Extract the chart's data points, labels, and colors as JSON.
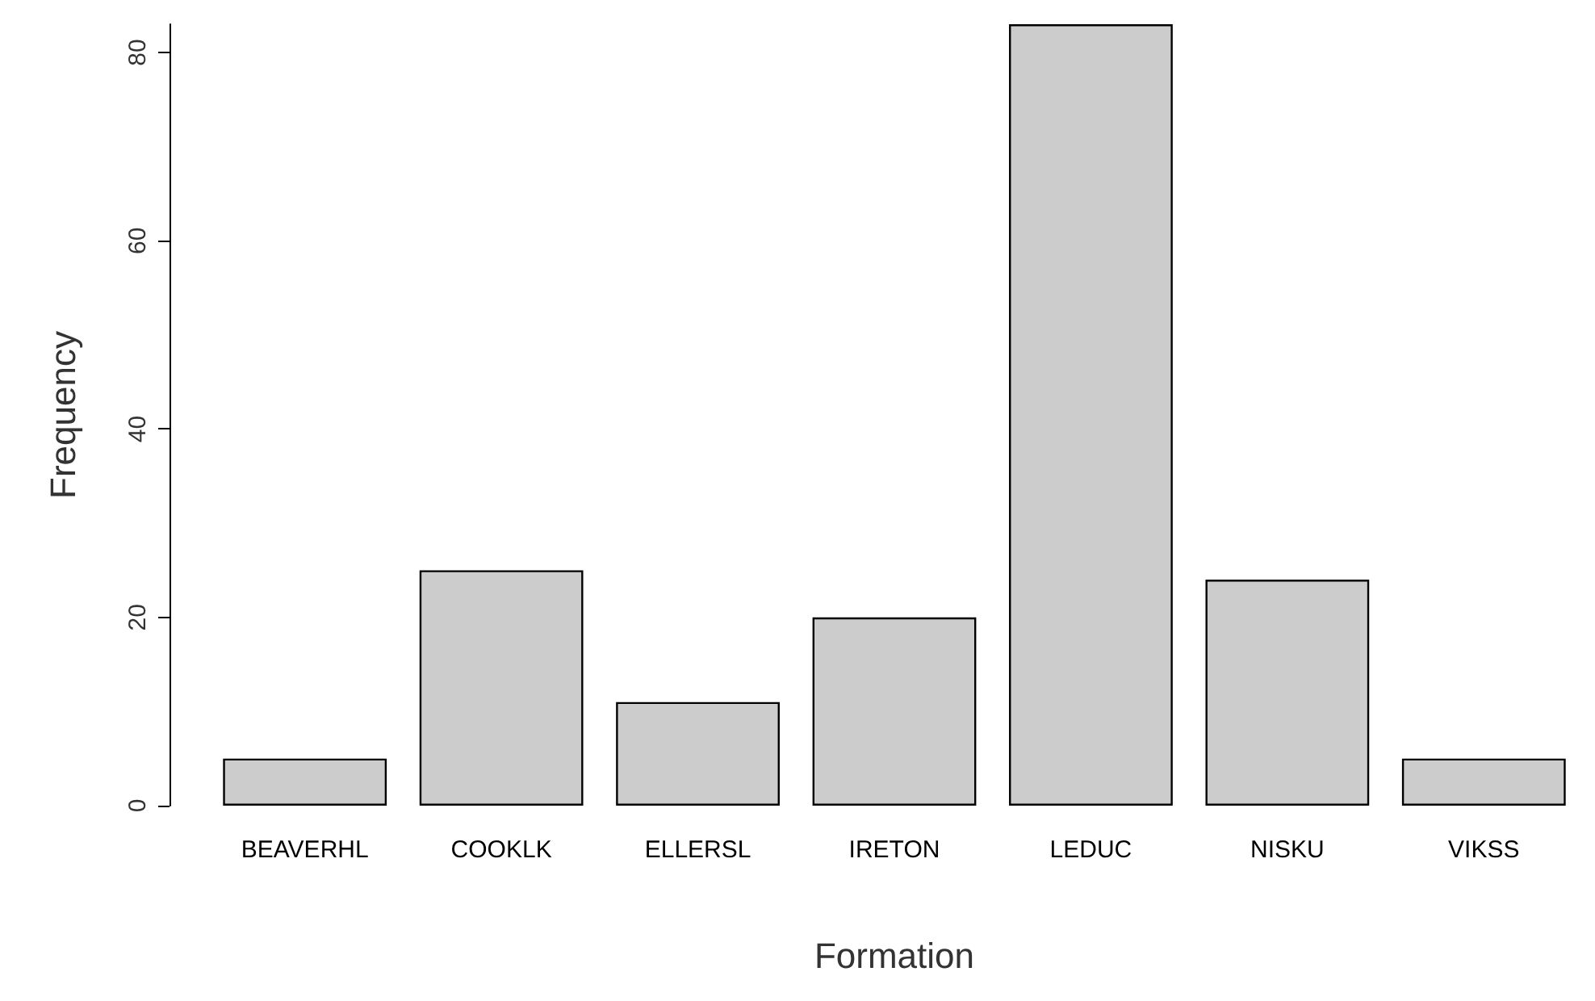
{
  "chart_data": {
    "type": "bar",
    "xlabel": "Formation",
    "ylabel": "Frequency",
    "categories": [
      "BEAVERHL",
      "COOKLK",
      "ELLERSL",
      "IRETON",
      "LEDUC",
      "NISKU",
      "VIKSS"
    ],
    "values": [
      5,
      25,
      11,
      20,
      83,
      24,
      5
    ],
    "color": "#cccccc",
    "ylim": [
      0,
      83
    ],
    "yticks": [
      0,
      20,
      40,
      60,
      80
    ],
    "grid": false
  }
}
